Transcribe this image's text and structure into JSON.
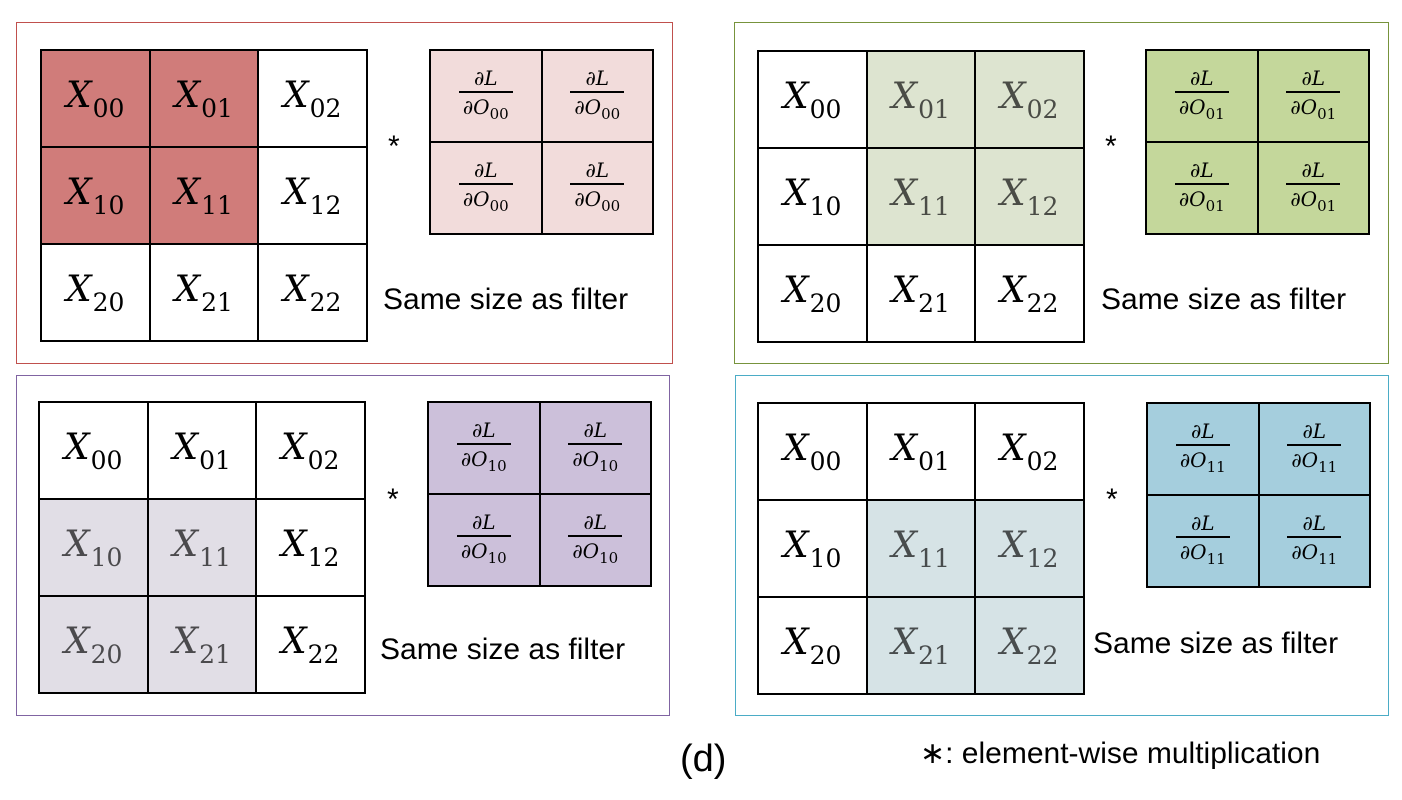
{
  "panels": [
    {
      "id": "top-left",
      "border_color": "#c0504d",
      "fill_color": "#f2dcdb",
      "highlight_color": "#c0504d",
      "x_labels": [
        [
          "X",
          "00"
        ],
        [
          "X",
          "01"
        ],
        [
          "X",
          "02"
        ],
        [
          "X",
          "10"
        ],
        [
          "X",
          "11"
        ],
        [
          "X",
          "12"
        ],
        [
          "X",
          "20"
        ],
        [
          "X",
          "21"
        ],
        [
          "X",
          "22"
        ]
      ],
      "highlighted_cells": [
        "00",
        "01",
        "10",
        "11"
      ],
      "grad_label": {
        "num": "∂L",
        "den": "∂O",
        "sub": "00"
      },
      "note": "Same size as filter"
    },
    {
      "id": "top-right",
      "border_color": "#77933c",
      "fill_color": "#c4d79b",
      "highlight_color": "#d7e0c8",
      "x_labels": [
        [
          "X",
          "00"
        ],
        [
          "X",
          "01"
        ],
        [
          "X",
          "02"
        ],
        [
          "X",
          "10"
        ],
        [
          "X",
          "11"
        ],
        [
          "X",
          "12"
        ],
        [
          "X",
          "20"
        ],
        [
          "X",
          "21"
        ],
        [
          "X",
          "22"
        ]
      ],
      "highlighted_cells": [
        "01",
        "02",
        "11",
        "12"
      ],
      "grad_label": {
        "num": "∂L",
        "den": "∂O",
        "sub": "01"
      },
      "note": "Same size as filter"
    },
    {
      "id": "bottom-left",
      "border_color": "#8064a2",
      "fill_color": "#ccc0da",
      "highlight_color": "#dcd9e2",
      "x_labels": [
        [
          "X",
          "00"
        ],
        [
          "X",
          "01"
        ],
        [
          "X",
          "02"
        ],
        [
          "X",
          "10"
        ],
        [
          "X",
          "11"
        ],
        [
          "X",
          "12"
        ],
        [
          "X",
          "20"
        ],
        [
          "X",
          "21"
        ],
        [
          "X",
          "22"
        ]
      ],
      "highlighted_cells": [
        "10",
        "11",
        "20",
        "21"
      ],
      "grad_label": {
        "num": "∂L",
        "den": "∂O",
        "sub": "10"
      },
      "note": "Same size as filter"
    },
    {
      "id": "bottom-right",
      "border_color": "#4bacc6",
      "fill_color": "#a5cedd",
      "highlight_color": "#cfdee2",
      "x_labels": [
        [
          "X",
          "00"
        ],
        [
          "X",
          "01"
        ],
        [
          "X",
          "02"
        ],
        [
          "X",
          "10"
        ],
        [
          "X",
          "11"
        ],
        [
          "X",
          "12"
        ],
        [
          "X",
          "20"
        ],
        [
          "X",
          "21"
        ],
        [
          "X",
          "22"
        ]
      ],
      "highlighted_cells": [
        "11",
        "12",
        "21",
        "22"
      ],
      "grad_label": {
        "num": "∂L",
        "den": "∂O",
        "sub": "11"
      },
      "note": "Same size as filter"
    }
  ],
  "operator_symbol": "*",
  "caption": "(d)",
  "legend": {
    "symbol": "∗",
    "text": ": element-wise multiplication"
  }
}
